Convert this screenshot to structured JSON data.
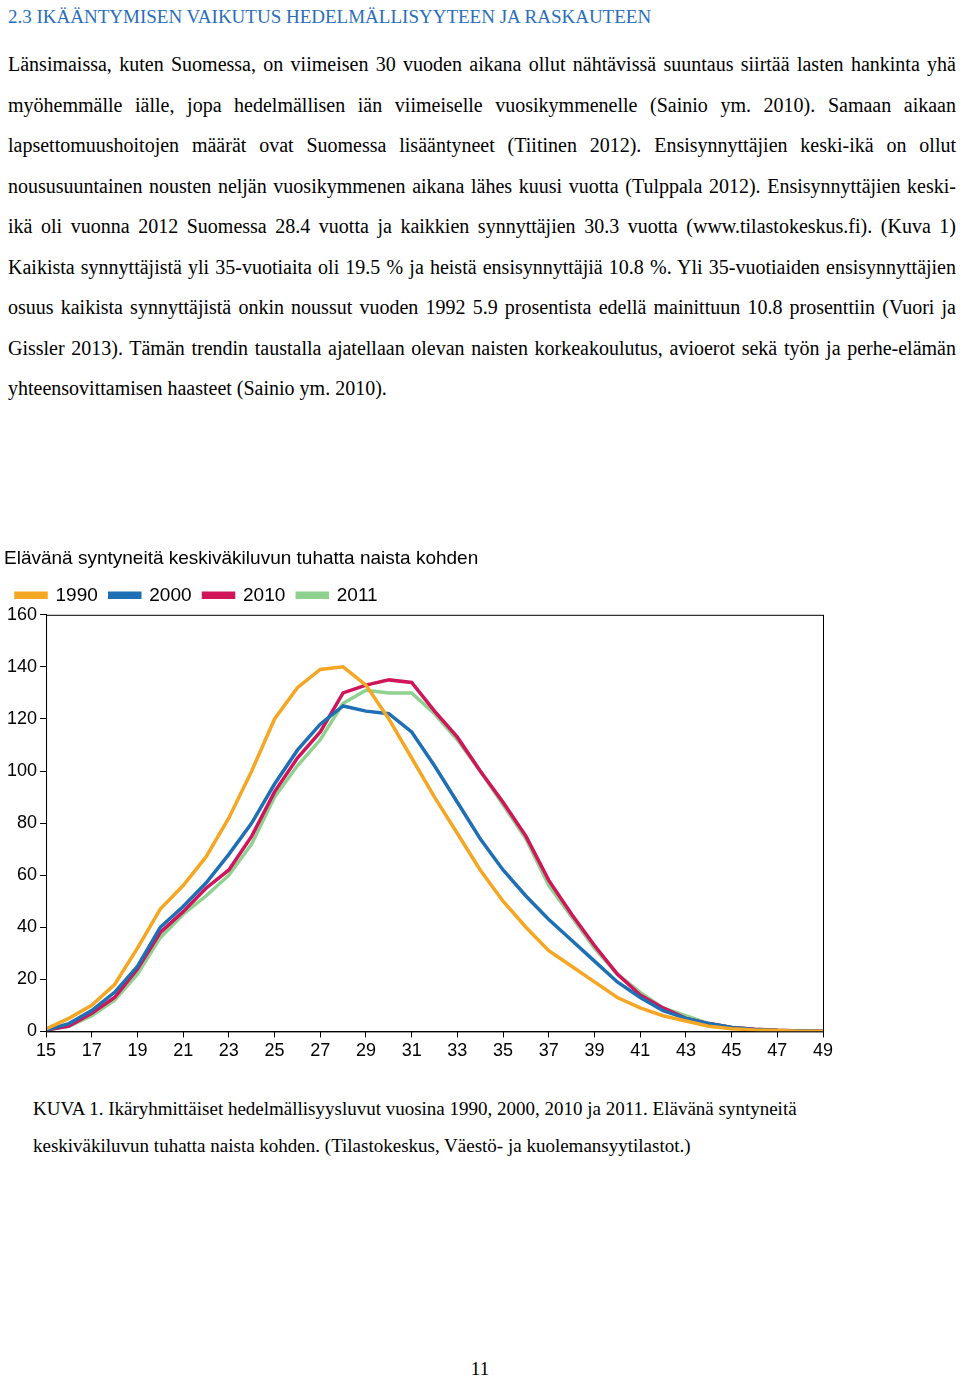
{
  "heading": "2.3 IKÄÄNTYMISEN VAIKUTUS HEDELMÄLLISYYTEEN JA RASKAUTEEN",
  "paragraph": "Länsimaissa, kuten Suomessa, on viimeisen 30 vuoden aikana ollut nähtävissä suuntaus siirtää lasten hankinta yhä myöhemmälle iälle, jopa hedelmällisen iän viimeiselle vuosikymmenelle (Sainio ym. 2010). Samaan aikaan lapsettomuushoitojen määrät ovat Suomessa lisääntyneet (Tiitinen 2012). Ensisynnyttäjien keski-ikä on ollut noususuuntainen nousten neljän vuosikymmenen aikana lähes kuusi vuotta (Tulppala 2012). Ensisynnyttäjien keski-ikä oli vuonna 2012 Suomessa 28.4 vuotta ja kaikkien synnyttäjien 30.3 vuotta (www.tilastokeskus.fi). (Kuva 1) Kaikista synnyttäjistä yli 35-vuotiaita oli 19.5 % ja heistä ensisynnyttäjiä 10.8 %. Yli 35-vuotiaiden ensisynnyttäjien osuus kaikista synnyttäjistä onkin noussut vuoden 1992 5.9 prosentista edellä mainittuun 10.8 prosenttiin (Vuori ja Gissler 2013). Tämän trendin taustalla ajatellaan olevan naisten korkeakoulutus, avioerot sekä työn ja perhe-elämän yhteensovittamisen haasteet (Sainio ym. 2010).",
  "chart_data": {
    "type": "line",
    "title": "Elävänä syntyneitä keskiväkiluvun tuhatta naista kohden",
    "x": [
      15,
      16,
      17,
      18,
      19,
      20,
      21,
      22,
      23,
      24,
      25,
      26,
      27,
      28,
      29,
      30,
      31,
      32,
      33,
      34,
      35,
      36,
      37,
      38,
      39,
      40,
      41,
      42,
      43,
      44,
      45,
      46,
      47,
      48,
      49
    ],
    "series": [
      {
        "name": "1990",
        "color": "#f5a623",
        "line_style": "solid",
        "values": [
          1,
          5,
          10,
          18,
          32,
          47,
          56,
          67,
          82,
          100,
          120,
          132,
          139,
          140,
          133,
          120,
          105,
          90,
          76,
          62,
          50,
          40,
          31,
          25,
          19,
          13,
          9,
          6,
          4,
          2,
          1,
          0.5,
          0.3,
          0.1,
          0.1
        ]
      },
      {
        "name": "2000",
        "color": "#1f6fb5",
        "line_style": "solid",
        "values": [
          0.5,
          3,
          8,
          15,
          25,
          40,
          48,
          57,
          68,
          80,
          95,
          108,
          118,
          125,
          123,
          122,
          115,
          102,
          88,
          74,
          62,
          52,
          43,
          35,
          27,
          19,
          13,
          8,
          5,
          3,
          1.5,
          0.7,
          0.3,
          0.2,
          0.1
        ]
      },
      {
        "name": "2010",
        "color": "#d0155a",
        "line_style": "solid",
        "values": [
          0.5,
          2,
          7,
          13,
          24,
          38,
          46,
          55,
          62,
          75,
          92,
          105,
          115,
          130,
          133,
          135,
          134,
          123,
          113,
          100,
          88,
          75,
          58,
          45,
          33,
          22,
          14,
          9,
          5,
          3,
          1.5,
          0.8,
          0.4,
          0.2,
          0.1
        ]
      },
      {
        "name": "2011",
        "color": "#8fd18f",
        "line_style": "solid",
        "values": [
          0.5,
          2,
          6,
          12,
          22,
          36,
          45,
          52,
          60,
          72,
          90,
          102,
          112,
          126,
          131,
          130,
          130,
          122,
          112,
          100,
          87,
          74,
          56,
          44,
          32,
          22,
          15,
          9,
          6,
          3,
          1.6,
          0.8,
          0.4,
          0.2,
          0.1
        ]
      }
    ],
    "xlim": [
      15,
      49
    ],
    "xticks": [
      15,
      17,
      19,
      21,
      23,
      25,
      27,
      29,
      31,
      33,
      35,
      37,
      39,
      41,
      43,
      45,
      47,
      49
    ],
    "ylim": [
      0,
      160
    ],
    "yticks": [
      0,
      20,
      40,
      60,
      80,
      100,
      120,
      140,
      160
    ],
    "grid": false,
    "legend": "top-left"
  },
  "caption": "KUVA 1.  Ikäryhmittäiset hedelmällisyysluvut vuosina 1990, 2000, 2010 ja 2011. Elävänä syntyneitä keskiväkiluvun tuhatta naista kohden. (Tilastokeskus, Väestö- ja kuolemansyytilastot.)",
  "page_number": "11"
}
